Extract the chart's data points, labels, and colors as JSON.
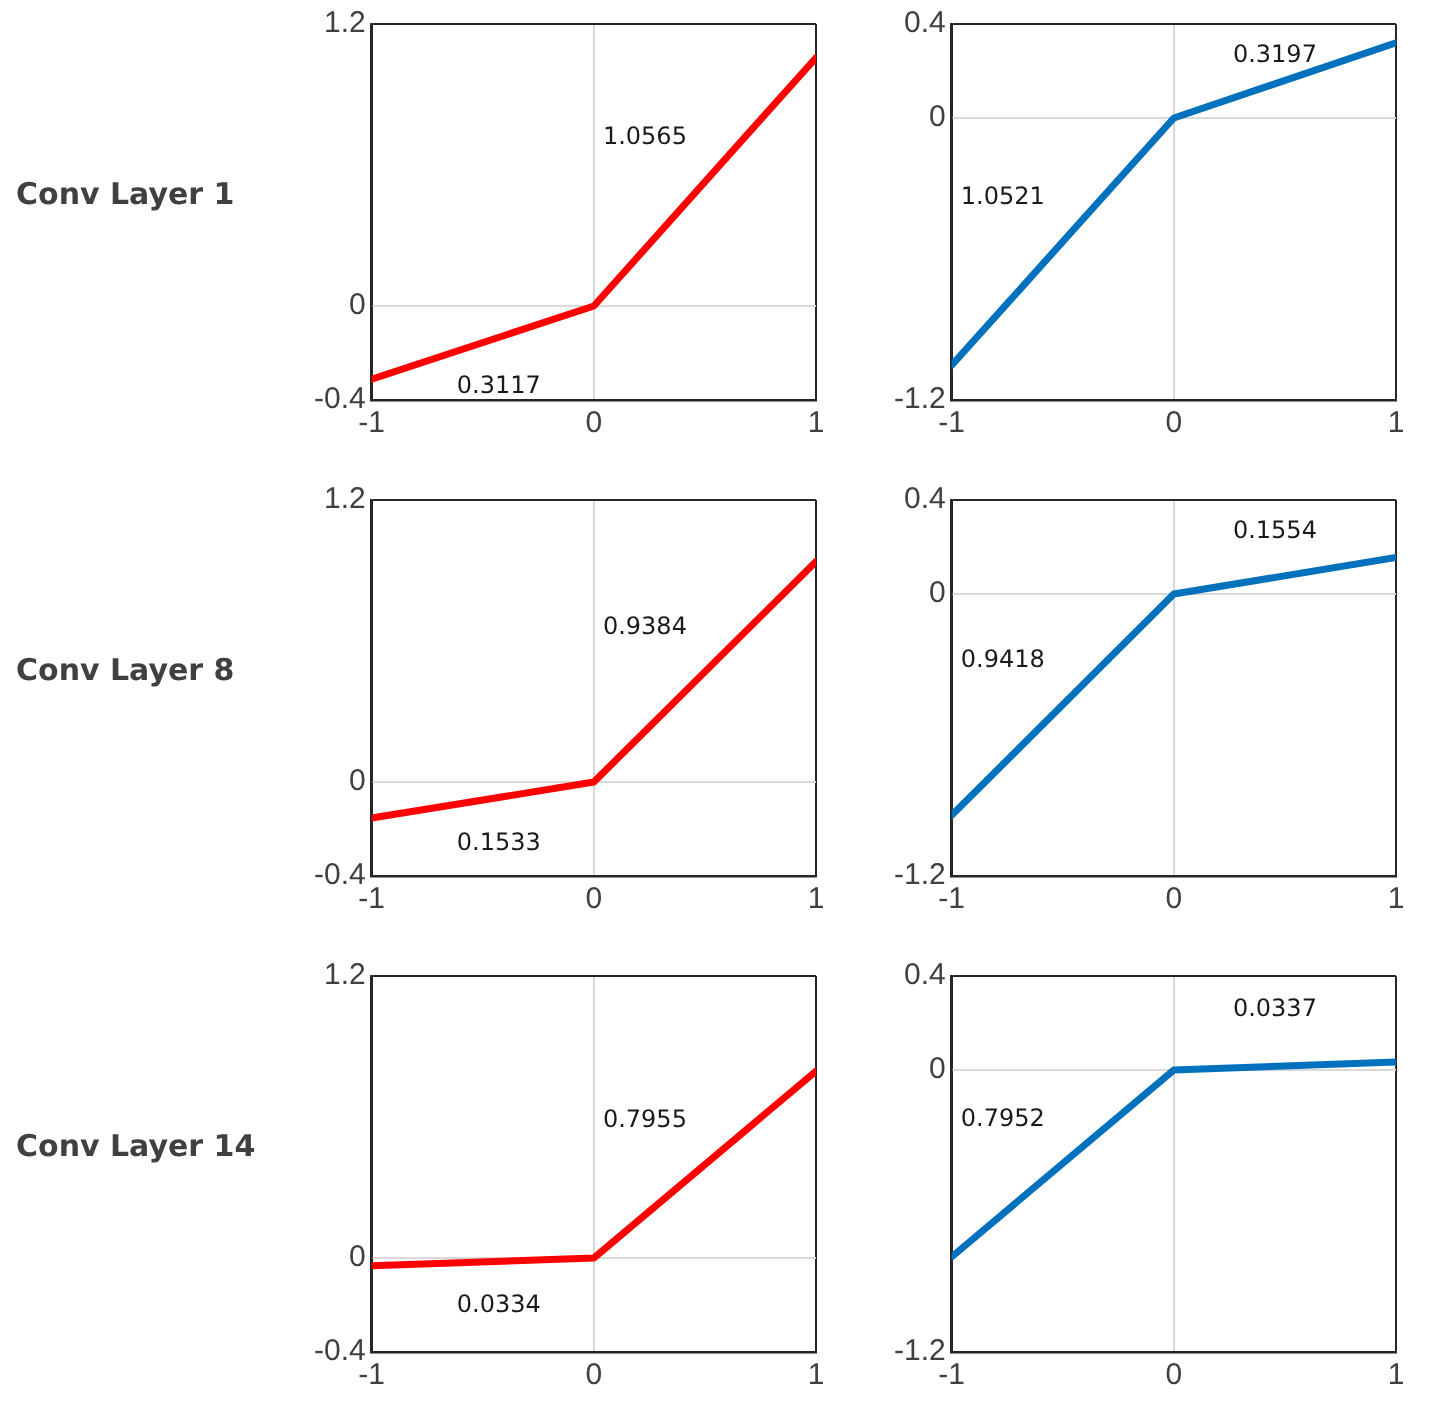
{
  "chart_data": [
    {
      "type": "line",
      "ylabel": "Conv Layer 1",
      "x": [
        -1,
        0,
        1
      ],
      "series": [
        {
          "color": "#ff0000",
          "values": [
            -0.3117,
            0,
            1.0565
          ]
        }
      ],
      "xlim": [
        -1,
        1
      ],
      "xticks": [
        -1,
        0,
        1
      ],
      "ylim": [
        -0.4,
        1.2
      ],
      "yticks": [
        -0.4,
        0,
        1.2
      ],
      "grid": true,
      "legend": false,
      "marker": "none",
      "line_style": "solid",
      "annotations": [
        "0.3117",
        "1.0565"
      ]
    },
    {
      "type": "line",
      "x": [
        -1,
        0,
        1
      ],
      "series": [
        {
          "color": "#0072bd",
          "values": [
            -1.0521,
            0,
            0.3197
          ]
        }
      ],
      "xlim": [
        -1,
        1
      ],
      "xticks": [
        -1,
        0,
        1
      ],
      "ylim": [
        -1.2,
        0.4
      ],
      "yticks": [
        -1.2,
        0,
        0.4
      ],
      "grid": true,
      "legend": false,
      "marker": "none",
      "line_style": "solid",
      "annotations": [
        "1.0521",
        "0.3197"
      ]
    },
    {
      "type": "line",
      "ylabel": "Conv Layer 8",
      "x": [
        -1,
        0,
        1
      ],
      "series": [
        {
          "color": "#ff0000",
          "values": [
            -0.1533,
            0,
            0.9384
          ]
        }
      ],
      "xlim": [
        -1,
        1
      ],
      "xticks": [
        -1,
        0,
        1
      ],
      "ylim": [
        -0.4,
        1.2
      ],
      "yticks": [
        -0.4,
        0,
        1.2
      ],
      "grid": true,
      "legend": false,
      "marker": "none",
      "line_style": "solid",
      "annotations": [
        "0.1533",
        "0.9384"
      ]
    },
    {
      "type": "line",
      "x": [
        -1,
        0,
        1
      ],
      "series": [
        {
          "color": "#0072bd",
          "values": [
            -0.9418,
            0,
            0.1554
          ]
        }
      ],
      "xlim": [
        -1,
        1
      ],
      "xticks": [
        -1,
        0,
        1
      ],
      "ylim": [
        -1.2,
        0.4
      ],
      "yticks": [
        -1.2,
        0,
        0.4
      ],
      "grid": true,
      "legend": false,
      "marker": "none",
      "line_style": "solid",
      "annotations": [
        "0.9418",
        "0.1554"
      ]
    },
    {
      "type": "line",
      "ylabel": "Conv Layer 14",
      "x": [
        -1,
        0,
        1
      ],
      "series": [
        {
          "color": "#ff0000",
          "values": [
            -0.0334,
            0,
            0.7955
          ]
        }
      ],
      "xlim": [
        -1,
        1
      ],
      "xticks": [
        -1,
        0,
        1
      ],
      "ylim": [
        -0.4,
        1.2
      ],
      "yticks": [
        -0.4,
        0,
        1.2
      ],
      "grid": true,
      "legend": false,
      "marker": "none",
      "line_style": "solid",
      "annotations": [
        "0.0334",
        "0.7955"
      ]
    },
    {
      "type": "line",
      "x": [
        -1,
        0,
        1
      ],
      "series": [
        {
          "color": "#0072bd",
          "values": [
            -0.7952,
            0,
            0.0337
          ]
        }
      ],
      "xlim": [
        -1,
        1
      ],
      "xticks": [
        -1,
        0,
        1
      ],
      "ylim": [
        -1.2,
        0.4
      ],
      "yticks": [
        -1.2,
        0,
        0.4
      ],
      "grid": true,
      "legend": false,
      "marker": "none",
      "line_style": "solid",
      "annotations": [
        "0.7952",
        "0.0337"
      ]
    }
  ]
}
